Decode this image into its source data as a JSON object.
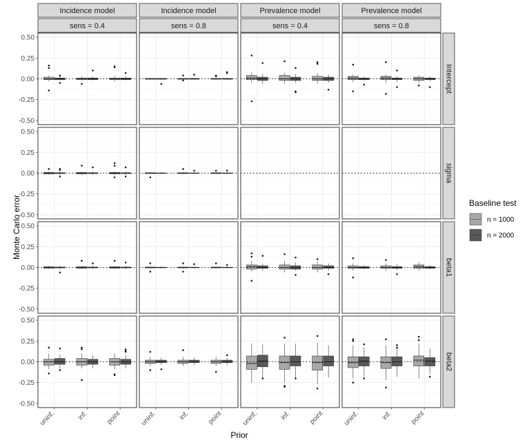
{
  "chart_data": {
    "type": "boxplot",
    "ylabel": "Monte Carlo error",
    "xlabel": "Prior",
    "ylim": [
      -0.55,
      0.55
    ],
    "yticks": [
      "0.50",
      "0.25",
      "0.00",
      "-0.25",
      "-0.50"
    ],
    "ytick_values": [
      0.5,
      0.25,
      0,
      -0.25,
      -0.5
    ],
    "categories": [
      "uninf.",
      "inf.",
      "point"
    ],
    "grid": true,
    "reference_line": 0,
    "legend": {
      "title": "Baseline test",
      "placement": "right",
      "entries": [
        {
          "label": "n = 1000",
          "color": "#a8a8a8"
        },
        {
          "label": "n = 2000",
          "color": "#595959"
        }
      ]
    },
    "columns": [
      {
        "model": "Incidence model",
        "sens": "sens = 0.4"
      },
      {
        "model": "Incidence model",
        "sens": "sens = 0.8"
      },
      {
        "model": "Prevalence model",
        "sens": "sens = 0.4"
      },
      {
        "model": "Prevalence model",
        "sens": "sens = 0.8"
      }
    ],
    "rows": [
      "Intercept",
      "sigma",
      "beta1",
      "beta2"
    ],
    "panels": [
      [
        [
          [
            [
              -0.03,
              -0.01,
              0.0,
              0.02,
              0.04,
              [
                -0.14,
                0.13,
                0.16
              ]
            ],
            [
              -0.02,
              -0.01,
              0.0,
              0.01,
              0.03,
              [
                -0.05,
                0.04
              ]
            ]
          ],
          [
            [
              -0.02,
              -0.01,
              0.0,
              0.01,
              0.03,
              [
                -0.06
              ]
            ],
            [
              -0.02,
              -0.01,
              0.0,
              0.01,
              0.03,
              [
                0.1
              ]
            ]
          ],
          [
            [
              -0.03,
              -0.01,
              0.0,
              0.01,
              0.04,
              [
                0.14,
                0.15
              ]
            ],
            [
              -0.02,
              -0.01,
              0.0,
              0.01,
              0.03,
              [
                0.07
              ]
            ]
          ]
        ],
        [
          [
            [
              -0.01,
              -0.005,
              0.0,
              0.005,
              0.01,
              []
            ],
            [
              -0.01,
              -0.005,
              0.0,
              0.005,
              0.01,
              [
                -0.06
              ]
            ]
          ],
          [
            [
              -0.01,
              -0.005,
              0.0,
              0.005,
              0.01,
              [
                0.04,
                -0.02
              ]
            ],
            [
              -0.01,
              -0.005,
              0.0,
              0.005,
              0.01,
              [
                0.05
              ]
            ]
          ],
          [
            [
              -0.01,
              -0.005,
              0.0,
              0.005,
              0.01,
              [
                0.03,
                0.04
              ]
            ],
            [
              -0.01,
              -0.005,
              0.0,
              0.005,
              0.01,
              [
                0.07,
                0.08
              ]
            ]
          ]
        ],
        [
          [
            [
              -0.05,
              -0.01,
              0.01,
              0.04,
              0.08,
              [
                -0.27,
                0.28
              ]
            ],
            [
              -0.06,
              -0.02,
              0.0,
              0.02,
              0.06,
              [
                0.19
              ]
            ]
          ],
          [
            [
              -0.06,
              -0.02,
              0.0,
              0.04,
              0.07,
              [
                0.21
              ]
            ],
            [
              -0.05,
              -0.02,
              0.0,
              0.02,
              0.06,
              [
                0.13,
                -0.15,
                -0.16
              ]
            ]
          ],
          [
            [
              -0.06,
              -0.02,
              0.0,
              0.03,
              0.07,
              [
                0.18,
                0.2
              ]
            ],
            [
              -0.05,
              -0.02,
              0.0,
              0.02,
              0.05,
              [
                -0.13
              ]
            ]
          ]
        ],
        [
          [
            [
              -0.04,
              -0.01,
              0.01,
              0.03,
              0.05,
              [
                0.17,
                -0.15
              ]
            ],
            [
              -0.02,
              -0.01,
              0.0,
              0.01,
              0.03,
              [
                -0.07
              ]
            ]
          ],
          [
            [
              -0.05,
              -0.01,
              0.01,
              0.03,
              0.05,
              [
                0.2,
                -0.18
              ]
            ],
            [
              -0.04,
              -0.01,
              0.0,
              0.01,
              0.03,
              [
                0.1,
                -0.1
              ]
            ]
          ],
          [
            [
              -0.05,
              -0.02,
              0.0,
              0.02,
              0.04,
              [
                -0.08
              ]
            ],
            [
              -0.03,
              -0.01,
              0.0,
              0.01,
              0.03,
              [
                -0.1
              ]
            ]
          ]
        ]
      ],
      [
        [
          [
            [
              -0.02,
              -0.01,
              0.0,
              0.01,
              0.02,
              [
                0.05
              ]
            ],
            [
              -0.02,
              -0.005,
              0.0,
              0.005,
              0.02,
              [
                -0.04,
                0.04,
                0.05
              ]
            ]
          ],
          [
            [
              -0.02,
              -0.01,
              0.0,
              0.01,
              0.02,
              [
                0.09
              ]
            ],
            [
              -0.02,
              -0.005,
              0.0,
              0.005,
              0.02,
              [
                0.07
              ]
            ]
          ],
          [
            [
              -0.02,
              -0.01,
              0.0,
              0.01,
              0.02,
              [
                0.12,
                0.09,
                -0.05
              ]
            ],
            [
              -0.02,
              -0.005,
              0.0,
              0.005,
              0.02,
              [
                0.07,
                -0.04
              ]
            ]
          ]
        ],
        [
          [
            [
              -0.01,
              -0.005,
              0.0,
              0.005,
              0.01,
              [
                -0.05
              ]
            ],
            [
              -0.01,
              -0.003,
              0.0,
              0.003,
              0.01,
              []
            ]
          ],
          [
            [
              -0.01,
              -0.005,
              0.0,
              0.005,
              0.01,
              [
                0.05
              ]
            ],
            [
              -0.01,
              -0.003,
              0.0,
              0.003,
              0.01,
              [
                0.03
              ]
            ]
          ],
          [
            [
              -0.01,
              -0.005,
              0.0,
              0.005,
              0.01,
              [
                0.03
              ]
            ],
            [
              -0.01,
              -0.003,
              0.0,
              0.003,
              0.01,
              [
                0.03
              ]
            ]
          ]
        ],
        null,
        null
      ],
      [
        [
          [
            [
              -0.02,
              -0.01,
              0.0,
              0.01,
              0.02,
              []
            ],
            [
              -0.02,
              -0.005,
              0.0,
              0.005,
              0.02,
              [
                -0.06
              ]
            ]
          ],
          [
            [
              -0.02,
              -0.01,
              0.0,
              0.01,
              0.02,
              [
                0.08
              ]
            ],
            [
              -0.02,
              -0.005,
              0.0,
              0.005,
              0.02,
              [
                0.05
              ]
            ]
          ],
          [
            [
              -0.02,
              -0.01,
              0.0,
              0.01,
              0.02,
              [
                0.08
              ]
            ],
            [
              -0.02,
              -0.005,
              0.0,
              0.005,
              0.02,
              [
                0.06
              ]
            ]
          ]
        ],
        [
          [
            [
              -0.01,
              -0.005,
              0.0,
              0.005,
              0.01,
              [
                0.05,
                -0.05
              ]
            ],
            [
              -0.01,
              -0.003,
              0.0,
              0.003,
              0.01,
              []
            ]
          ],
          [
            [
              -0.01,
              -0.005,
              0.0,
              0.005,
              0.01,
              [
                0.05,
                -0.05
              ]
            ],
            [
              -0.01,
              -0.003,
              0.0,
              0.003,
              0.01,
              [
                0.04
              ]
            ]
          ],
          [
            [
              -0.01,
              -0.005,
              0.0,
              0.005,
              0.01,
              [
                0.05
              ]
            ],
            [
              -0.01,
              -0.003,
              0.0,
              0.003,
              0.01,
              [
                0.03
              ]
            ]
          ]
        ],
        [
          [
            [
              -0.05,
              -0.02,
              0.01,
              0.03,
              0.08,
              [
                0.17,
                0.13,
                -0.16
              ]
            ],
            [
              -0.04,
              -0.01,
              0.0,
              0.02,
              0.05,
              [
                0.14
              ]
            ]
          ],
          [
            [
              -0.06,
              -0.02,
              0.0,
              0.03,
              0.08,
              [
                0.16
              ]
            ],
            [
              -0.04,
              -0.02,
              0.0,
              0.02,
              0.06,
              [
                0.12,
                -0.09
              ]
            ]
          ],
          [
            [
              -0.06,
              -0.02,
              0.0,
              0.03,
              0.07,
              [
                0.1
              ]
            ],
            [
              -0.04,
              -0.01,
              0.0,
              0.02,
              0.05,
              [
                -0.08
              ]
            ]
          ]
        ],
        [
          [
            [
              -0.04,
              -0.01,
              0.0,
              0.02,
              0.05,
              [
                0.11,
                -0.12
              ]
            ],
            [
              -0.02,
              -0.01,
              0.0,
              0.01,
              0.03,
              []
            ]
          ],
          [
            [
              -0.04,
              -0.01,
              0.0,
              0.02,
              0.05,
              [
                0.09
              ]
            ],
            [
              -0.03,
              -0.01,
              0.0,
              0.01,
              0.04,
              [
                -0.08
              ]
            ]
          ],
          [
            [
              -0.04,
              -0.01,
              0.01,
              0.03,
              0.06,
              []
            ],
            [
              -0.02,
              -0.01,
              0.0,
              0.01,
              0.03,
              []
            ]
          ]
        ]
      ],
      [
        [
          [
            [
              -0.09,
              -0.04,
              0.0,
              0.03,
              0.1,
              [
                0.17,
                -0.14
              ]
            ],
            [
              -0.08,
              -0.03,
              0.0,
              0.04,
              0.09,
              [
                0.16,
                -0.1
              ]
            ]
          ],
          [
            [
              -0.08,
              -0.04,
              0.0,
              0.04,
              0.1,
              [
                0.17,
                0.15,
                -0.22
              ]
            ],
            [
              -0.08,
              -0.03,
              0.0,
              0.03,
              0.08,
              []
            ]
          ],
          [
            [
              -0.09,
              -0.04,
              0.0,
              0.04,
              0.1,
              [
                -0.16,
                -0.15
              ]
            ],
            [
              -0.08,
              -0.03,
              0.0,
              0.03,
              0.08,
              [
                0.13,
                0.12,
                0.15
              ]
            ]
          ]
        ],
        [
          [
            [
              -0.05,
              -0.02,
              0.0,
              0.02,
              0.06,
              [
                0.12,
                -0.1
              ]
            ],
            [
              -0.04,
              -0.01,
              0.0,
              0.02,
              0.05,
              [
                -0.09
              ]
            ]
          ],
          [
            [
              -0.05,
              -0.02,
              0.0,
              0.02,
              0.06,
              [
                0.14
              ]
            ],
            [
              -0.04,
              -0.01,
              0.0,
              0.02,
              0.05,
              []
            ]
          ],
          [
            [
              -0.05,
              -0.02,
              0.0,
              0.02,
              0.06,
              [
                -0.12
              ]
            ],
            [
              -0.04,
              -0.01,
              0.0,
              0.02,
              0.05,
              [
                0.08
              ]
            ]
          ]
        ],
        [
          [
            [
              -0.25,
              -0.09,
              -0.02,
              0.07,
              0.22,
              []
            ],
            [
              -0.2,
              -0.06,
              0.01,
              0.08,
              0.21,
              [
                -0.2
              ]
            ]
          ],
          [
            [
              -0.25,
              -0.09,
              -0.01,
              0.07,
              0.22,
              [
                0.29,
                -0.29,
                -0.3
              ]
            ],
            [
              -0.2,
              -0.05,
              0.0,
              0.07,
              0.22,
              [
                -0.2
              ]
            ]
          ],
          [
            [
              -0.27,
              -0.1,
              -0.01,
              0.07,
              0.23,
              [
                0.31,
                -0.32
              ]
            ],
            [
              -0.19,
              -0.05,
              0.0,
              0.07,
              0.2,
              []
            ]
          ]
        ],
        [
          [
            [
              -0.2,
              -0.07,
              -0.01,
              0.06,
              0.2,
              [
                0.27,
                0.25,
                -0.25
              ]
            ],
            [
              -0.18,
              -0.05,
              0.01,
              0.06,
              0.17,
              [
                0.21,
                -0.2
              ]
            ]
          ],
          [
            [
              -0.22,
              -0.08,
              -0.01,
              0.06,
              0.2,
              [
                0.27,
                -0.31
              ]
            ],
            [
              -0.18,
              -0.05,
              0.0,
              0.06,
              0.18,
              [
                0.2,
                0.17
              ]
            ]
          ],
          [
            [
              -0.2,
              -0.05,
              0.02,
              0.07,
              0.22,
              [
                0.3,
                0.26
              ]
            ],
            [
              -0.15,
              -0.05,
              0.01,
              0.05,
              0.16,
              [
                -0.18
              ]
            ]
          ]
        ]
      ]
    ]
  }
}
